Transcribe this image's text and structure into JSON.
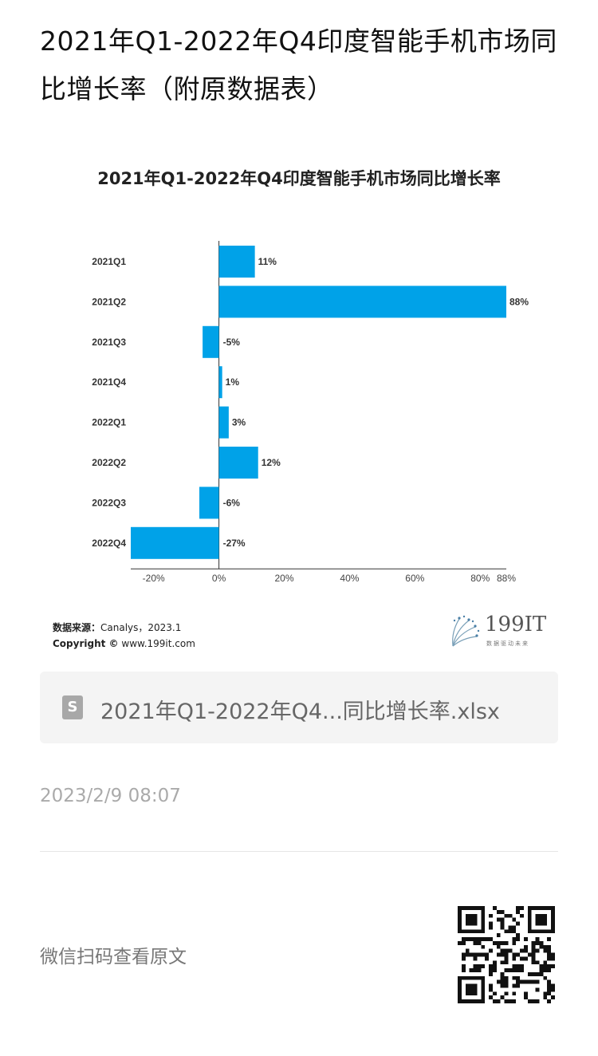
{
  "article": {
    "title": "2021年Q1-2022年Q4印度智能手机市场同比增长率（附原数据表）"
  },
  "chart_data": {
    "type": "bar",
    "orientation": "horizontal",
    "title": "2021年Q1-2022年Q4印度智能手机市场同比增长率",
    "categories": [
      "2021Q1",
      "2021Q2",
      "2021Q3",
      "2021Q4",
      "2022Q1",
      "2022Q2",
      "2022Q3",
      "2022Q4"
    ],
    "values": [
      11,
      88,
      -5,
      1,
      3,
      12,
      -6,
      -27
    ],
    "value_labels": [
      "11%",
      "88%",
      "-5%",
      "1%",
      "3%",
      "12%",
      "-6%",
      "-27%"
    ],
    "x_ticks": [
      "-20%",
      "0%",
      "20%",
      "40%",
      "60%",
      "80%",
      "88%"
    ],
    "x_tick_values": [
      -20,
      0,
      20,
      40,
      60,
      80,
      88
    ],
    "xlim": [
      -27,
      88
    ],
    "bar_color": "#00a2e8",
    "grid": false
  },
  "source": {
    "label": "数据来源：",
    "text": "Canalys，2023.1",
    "copyright_label": "Copyright ©",
    "copyright_url": "www.199it.com"
  },
  "logo": {
    "text": "199IT",
    "subtitle": "数据驱动未来"
  },
  "file": {
    "icon": "spreadsheet-file-icon",
    "icon_letter": "S",
    "name": "2021年Q1-2022年Q4...同比增长率.xlsx"
  },
  "timestamp": "2023/2/9 08:07",
  "footer": {
    "wechat_label": "微信扫码查看原文"
  }
}
